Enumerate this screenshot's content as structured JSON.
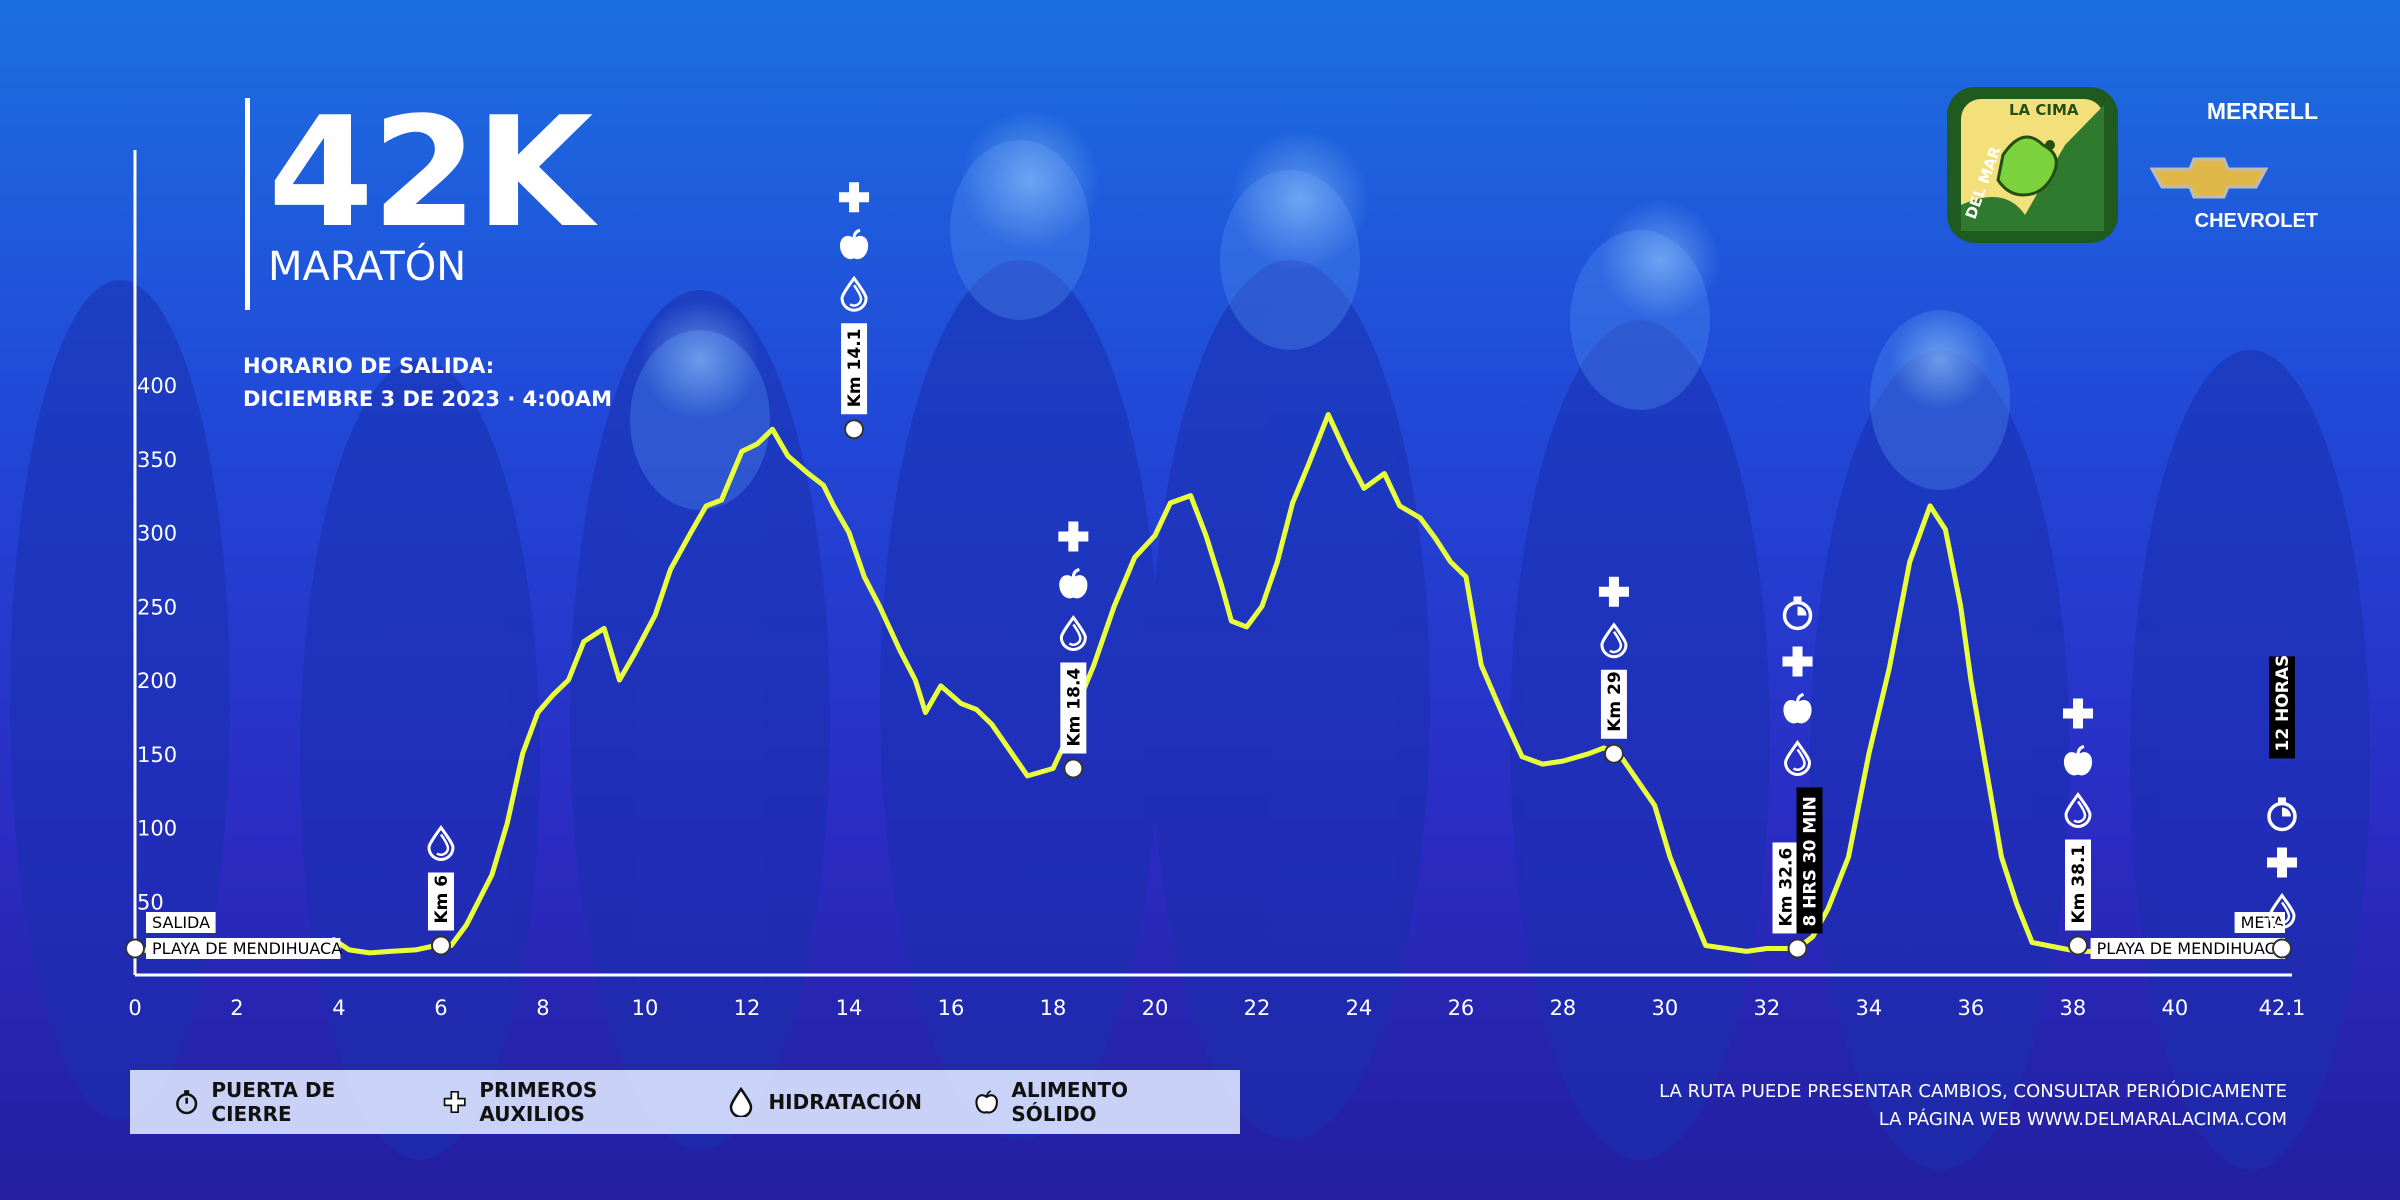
{
  "title": "42K",
  "subtitle": "MARATÓN",
  "start_info": {
    "line1": "HORARIO DE SALIDA:",
    "line2": "DICIEMBRE 3 DE 2023 · 4:00AM"
  },
  "brand": {
    "logo_text": "DEL MAR A LA CIMA",
    "sponsor1": "MERRELL",
    "sponsor2": "CHEVROLET"
  },
  "note": {
    "line1": "LA RUTA PUEDE PRESENTAR CAMBIOS, CONSULTAR PERIÓDICAMENTE",
    "line2": "LA PÁGINA WEB WWW.DELMARALACIMA.COM"
  },
  "legend": [
    {
      "icon": "stopwatch-icon",
      "label": "PUERTA DE CIERRE"
    },
    {
      "icon": "plus-icon",
      "label": "PRIMEROS AUXILIOS"
    },
    {
      "icon": "water-drop-icon",
      "label": "HIDRATACIÓN"
    },
    {
      "icon": "apple-icon",
      "label": "ALIMENTO SÓLIDO"
    }
  ],
  "colors": {
    "line": "#e8ff3a",
    "axis": "#ffffff",
    "bg_top": "#1c6fe0",
    "bg_bottom": "#241f9f"
  },
  "chart_data": {
    "type": "line",
    "xlabel": "",
    "ylabel": "",
    "xlim": [
      0,
      42.1
    ],
    "ylim": [
      0,
      400
    ],
    "x_ticks": [
      "0",
      "2",
      "4",
      "6",
      "8",
      "10",
      "12",
      "14",
      "16",
      "18",
      "20",
      "22",
      "24",
      "26",
      "28",
      "30",
      "32",
      "34",
      "36",
      "38",
      "40",
      "42.1"
    ],
    "y_ticks": [
      "50",
      "100",
      "150",
      "200",
      "250",
      "300",
      "350",
      "400"
    ],
    "series": [
      {
        "x": [
          0,
          0.5,
          1,
          1.5,
          2,
          2.5,
          3,
          3.5,
          3.9,
          4.2,
          4.6,
          5,
          5.5,
          5.9,
          6.2,
          6.5,
          7,
          7.3,
          7.6,
          7.9,
          8.2,
          8.5,
          8.8,
          9.2,
          9.5,
          9.8,
          10.2,
          10.5,
          10.9,
          11.2,
          11.5,
          11.9,
          12.2,
          12.5,
          12.8,
          13.2,
          13.5,
          13.7,
          14,
          14.3,
          14.6,
          15,
          15.3,
          15.5,
          15.8,
          16,
          16.2,
          16.5,
          16.8,
          17.2,
          17.5,
          18,
          18.3,
          18.5,
          18.8,
          19.2,
          19.6,
          20,
          20.3,
          20.7,
          21,
          21.3,
          21.5,
          21.8,
          22.1,
          22.4,
          22.7,
          23,
          23.4,
          23.8,
          24.1,
          24.5,
          24.8,
          25.2,
          25.5,
          25.8,
          26.1,
          26.4,
          26.8,
          27.2,
          27.6,
          28,
          28.5,
          28.8,
          29.1,
          29.4,
          29.8,
          30.1,
          30.5,
          30.8,
          31.2,
          31.6,
          32,
          32.4,
          32.6,
          32.9,
          33.2,
          33.6,
          34,
          34.4,
          34.8,
          35.2,
          35.5,
          35.8,
          36,
          36.3,
          36.6,
          36.9,
          37.2,
          37.5,
          37.8,
          38.1,
          38.5,
          38.9,
          39.3,
          39.7,
          40.1,
          40.6,
          41,
          41.5,
          42.1
        ],
        "y": [
          18,
          15,
          14,
          15,
          17,
          14,
          15,
          17,
          24,
          17,
          15,
          16,
          17,
          20,
          20,
          34,
          68,
          103,
          150,
          178,
          190,
          200,
          226,
          235,
          200,
          218,
          244,
          275,
          300,
          318,
          322,
          355,
          360,
          370,
          352,
          340,
          332,
          318,
          300,
          270,
          250,
          220,
          200,
          178,
          196,
          190,
          184,
          180,
          170,
          150,
          135,
          140,
          162,
          185,
          210,
          250,
          283,
          298,
          320,
          325,
          298,
          265,
          240,
          236,
          250,
          280,
          320,
          345,
          380,
          350,
          330,
          340,
          318,
          310,
          296,
          280,
          270,
          210,
          178,
          148,
          143,
          145,
          150,
          154,
          150,
          135,
          115,
          80,
          45,
          20,
          18,
          16,
          18,
          18,
          18,
          26,
          45,
          80,
          150,
          208,
          280,
          318,
          302,
          250,
          200,
          140,
          80,
          48,
          22,
          20,
          18,
          16,
          16,
          17,
          18,
          20,
          18,
          16,
          18,
          22,
          18
        ]
      }
    ],
    "annotations": [
      {
        "km_label": "Km 6",
        "x": 6,
        "y": 20,
        "icons": [
          "water-drop-icon"
        ]
      },
      {
        "km_label": "Km 14.1",
        "x": 14.1,
        "y": 370,
        "icons": [
          "plus-icon",
          "apple-icon",
          "water-drop-icon"
        ]
      },
      {
        "km_label": "Km 18.4",
        "x": 18.4,
        "y": 140,
        "icons": [
          "plus-icon",
          "apple-icon",
          "water-drop-icon"
        ]
      },
      {
        "km_label": "Km 29",
        "x": 29,
        "y": 150,
        "icons": [
          "plus-icon",
          "water-drop-icon"
        ]
      },
      {
        "km_label": "Km 32.6",
        "extra_label": "8 HRS 30 MIN",
        "x": 32.6,
        "y": 18,
        "icons": [
          "stopwatch-icon",
          "plus-icon",
          "apple-icon",
          "water-drop-icon"
        ]
      },
      {
        "km_label": "Km 38.1",
        "x": 38.1,
        "y": 20,
        "icons": [
          "plus-icon",
          "apple-icon",
          "water-drop-icon"
        ]
      },
      {
        "km_label": "",
        "extra_label": "12 HORAS",
        "x": 42.1,
        "y": 18,
        "icons": [
          "stopwatch-icon",
          "plus-icon",
          "water-drop-icon"
        ]
      }
    ],
    "start_labels": [
      "SALIDA",
      "PLAYA DE MENDIHUACA"
    ],
    "end_labels": [
      "META",
      "PLAYA DE MENDIHUACA"
    ]
  }
}
